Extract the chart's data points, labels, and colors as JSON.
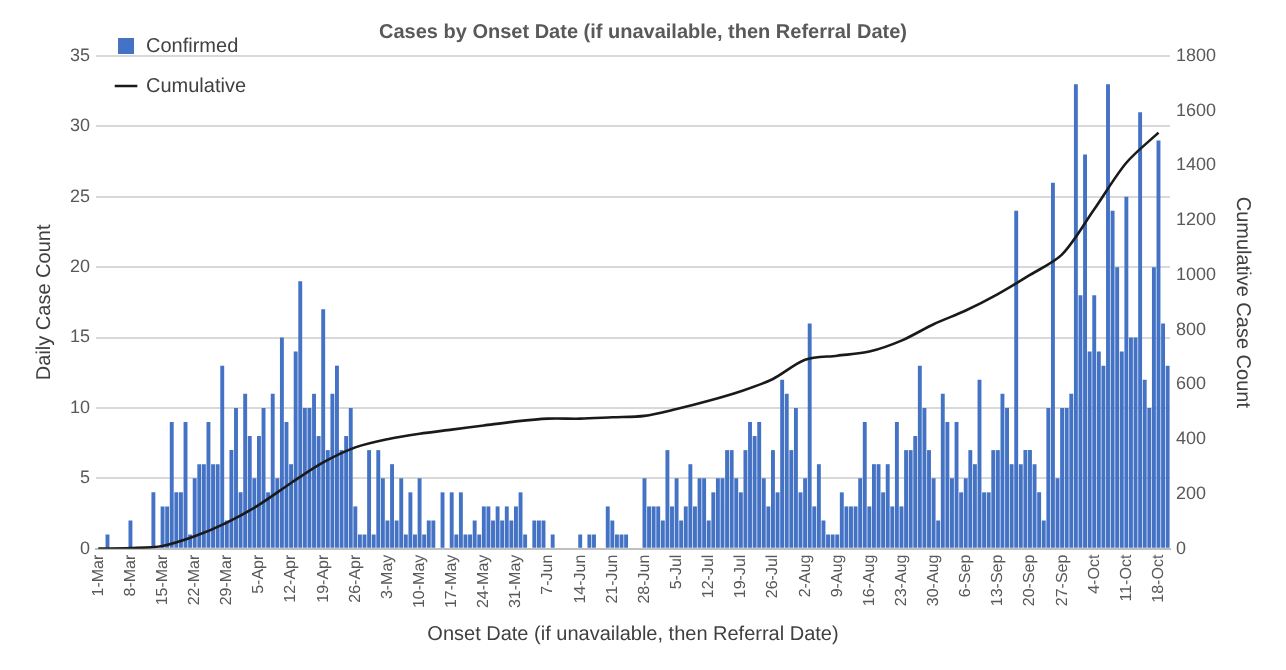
{
  "chart_data": {
    "type": "bar",
    "title": "Cases by Onset Date (if unavailable, then Referral Date)",
    "xlabel": "Onset Date (if unavailable, then Referral Date)",
    "ylabel": "Daily Case Count",
    "y2label": "Cumulative Case Count",
    "categories": [
      "1-Mar",
      null,
      null,
      null,
      null,
      null,
      null,
      "8-Mar",
      null,
      null,
      null,
      null,
      null,
      null,
      "15-Mar",
      null,
      null,
      null,
      null,
      null,
      null,
      "22-Mar",
      null,
      null,
      null,
      null,
      null,
      null,
      "29-Mar",
      null,
      null,
      null,
      null,
      null,
      null,
      "5-Apr",
      null,
      null,
      null,
      null,
      null,
      null,
      "12-Apr",
      null,
      null,
      null,
      null,
      null,
      null,
      "19-Apr",
      null,
      null,
      null,
      null,
      null,
      null,
      "26-Apr",
      null,
      null,
      null,
      null,
      null,
      null,
      "3-May",
      null,
      null,
      null,
      null,
      null,
      null,
      "10-May",
      null,
      null,
      null,
      null,
      null,
      null,
      "17-May",
      null,
      null,
      null,
      null,
      null,
      null,
      "24-May",
      null,
      null,
      null,
      null,
      null,
      null,
      "31-May",
      null,
      null,
      null,
      null,
      null,
      null,
      "7-Jun",
      null,
      null,
      null,
      null,
      null,
      null,
      "14-Jun",
      null,
      null,
      null,
      null,
      null,
      null,
      "21-Jun",
      null,
      null,
      null,
      null,
      null,
      null,
      "28-Jun",
      null,
      null,
      null,
      null,
      null,
      null,
      "5-Jul",
      null,
      null,
      null,
      null,
      null,
      null,
      "12-Jul",
      null,
      null,
      null,
      null,
      null,
      null,
      "19-Jul",
      null,
      null,
      null,
      null,
      null,
      null,
      "26-Jul",
      null,
      null,
      null,
      null,
      null,
      null,
      "2-Aug",
      null,
      null,
      null,
      null,
      null,
      null,
      "9-Aug",
      null,
      null,
      null,
      null,
      null,
      null,
      "16-Aug",
      null,
      null,
      null,
      null,
      null,
      null,
      "23-Aug",
      null,
      null,
      null,
      null,
      null,
      null,
      "30-Aug",
      null,
      null,
      null,
      null,
      null,
      null,
      "6-Sep",
      null,
      null,
      null,
      null,
      null,
      null,
      "13-Sep",
      null,
      null,
      null,
      null,
      null,
      null,
      "20-Sep",
      null,
      null,
      null,
      null,
      null,
      null,
      "27-Sep",
      null,
      null,
      null,
      null,
      null,
      null,
      "4-Oct",
      null,
      null,
      null,
      null,
      null,
      null,
      "11-Oct",
      null,
      null,
      null,
      null,
      null,
      null,
      "18-Oct",
      null,
      null
    ],
    "series": [
      {
        "name": "Confirmed",
        "color": "#4472c4",
        "values": [
          0,
          0,
          1,
          0,
          0,
          0,
          0,
          2,
          0,
          0,
          0,
          0,
          4,
          0,
          3,
          3,
          9,
          4,
          4,
          9,
          1,
          5,
          6,
          6,
          9,
          6,
          6,
          13,
          2,
          7,
          10,
          4,
          11,
          8,
          5,
          8,
          10,
          4,
          11,
          5,
          15,
          9,
          6,
          14,
          19,
          10,
          10,
          11,
          8,
          17,
          7,
          11,
          13,
          7,
          8,
          10,
          3,
          1,
          1,
          7,
          1,
          7,
          5,
          2,
          6,
          2,
          5,
          1,
          4,
          1,
          5,
          1,
          2,
          2,
          0,
          4,
          0,
          4,
          1,
          4,
          1,
          1,
          2,
          1,
          3,
          3,
          2,
          3,
          2,
          3,
          2,
          3,
          4,
          1,
          0,
          2,
          2,
          2,
          0,
          1,
          0,
          0,
          0,
          0,
          0,
          1,
          0,
          1,
          1,
          0,
          0,
          3,
          2,
          1,
          1,
          1,
          0,
          0,
          0,
          5,
          3,
          3,
          3,
          2,
          7,
          3,
          5,
          2,
          3,
          6,
          3,
          5,
          5,
          2,
          4,
          5,
          5,
          7,
          7,
          5,
          4,
          7,
          9,
          8,
          9,
          5,
          3,
          7,
          4,
          12,
          11,
          7,
          10,
          4,
          5,
          16,
          3,
          6,
          2,
          1,
          1,
          1,
          4,
          3,
          3,
          3,
          5,
          9,
          3,
          6,
          6,
          4,
          6,
          3,
          9,
          3,
          7,
          7,
          8,
          13,
          10,
          7,
          5,
          2,
          11,
          9,
          5,
          9,
          4,
          5,
          7,
          6,
          12,
          4,
          4,
          7,
          7,
          11,
          10,
          6,
          24,
          6,
          7,
          7,
          6,
          4,
          2,
          10,
          26,
          5,
          10,
          10,
          11,
          33,
          18,
          28,
          14,
          18,
          14,
          13,
          33,
          24,
          20,
          14,
          25,
          15,
          15,
          31,
          12,
          10,
          20,
          29,
          16,
          13
        ]
      },
      {
        "name": "Cumulative",
        "type": "line",
        "axis": "y2",
        "color": "#1a1a1a",
        "x": [
          "1-Mar",
          "8-Mar",
          "15-Mar",
          "22-Mar",
          "29-Mar",
          "5-Apr",
          "12-Apr",
          "19-Apr",
          "26-Apr",
          "3-May",
          "10-May",
          "17-May",
          "24-May",
          "31-May",
          "7-Jun",
          "14-Jun",
          "21-Jun",
          "28-Jun",
          "5-Jul",
          "12-Jul",
          "19-Jul",
          "26-Jul",
          "2-Aug",
          "9-Aug",
          "16-Aug",
          "23-Aug",
          "30-Aug",
          "6-Sep",
          "13-Sep",
          "20-Sep",
          "27-Sep",
          "4-Oct",
          "11-Oct",
          "18-Oct"
        ],
        "values": [
          0,
          2,
          10,
          45,
          95,
          160,
          240,
          315,
          370,
          400,
          420,
          435,
          450,
          465,
          475,
          475,
          480,
          485,
          510,
          540,
          575,
          620,
          690,
          705,
          720,
          760,
          820,
          870,
          930,
          1000,
          1075,
          1240,
          1410,
          1520
        ]
      }
    ],
    "ylim": [
      0,
      35
    ],
    "yticks": [
      0,
      5,
      10,
      15,
      20,
      25,
      30,
      35
    ],
    "y2lim": [
      0,
      1800
    ],
    "y2ticks": [
      0,
      200,
      400,
      600,
      800,
      1000,
      1200,
      1400,
      1600,
      1800
    ],
    "grid": "y",
    "legend": "top left"
  }
}
